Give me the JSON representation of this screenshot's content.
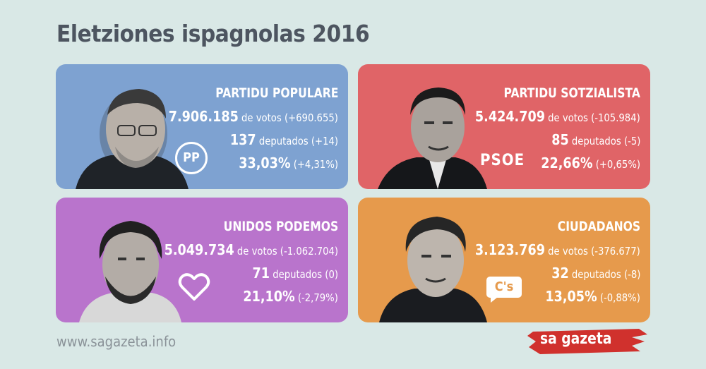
{
  "title": "Eletziones ispagnolas 2016",
  "cards": [
    {
      "party": "PARTIDU POPULARE",
      "votes": "7.906.185",
      "votes_suffix": " de votos (+690.655)",
      "seats": "137",
      "seats_suffix": " deputados (+14)",
      "pct": "33,03%",
      "pct_suffix": " (+4,31%)",
      "logo_text": "PP",
      "color": "#7ea2d1",
      "portrait_icon": "candidate-portrait"
    },
    {
      "party": "PARTIDU SOTZIALISTA",
      "votes": "5.424.709",
      "votes_suffix": " de votos (-105.984)",
      "seats": "85",
      "seats_suffix": " deputados (-5)",
      "pct": "22,66%",
      "pct_suffix": " (+0,65%)",
      "logo_text": "PSOE",
      "color": "#e06467",
      "portrait_icon": "candidate-portrait"
    },
    {
      "party": "UNIDOS PODEMOS",
      "votes": "5.049.734",
      "votes_suffix": " de votos (-1.062.704)",
      "seats": "71",
      "seats_suffix": " deputados (0)",
      "pct": "21,10%",
      "pct_suffix": " (-2,79%)",
      "logo_text": "",
      "color": "#b974cc",
      "portrait_icon": "candidate-portrait"
    },
    {
      "party": "CIUDADANOS",
      "votes": "3.123.769",
      "votes_suffix": " de votos (-376.677)",
      "seats": "32",
      "seats_suffix": " deputados (-8)",
      "pct": "13,05%",
      "pct_suffix": " (-0,88%)",
      "logo_text": "C's",
      "color": "#e69a4c",
      "portrait_icon": "candidate-portrait"
    }
  ],
  "footer": {
    "url": "www.sagazeta.info",
    "brand": "sa gazeta",
    "brand_color": "#d0312d"
  }
}
